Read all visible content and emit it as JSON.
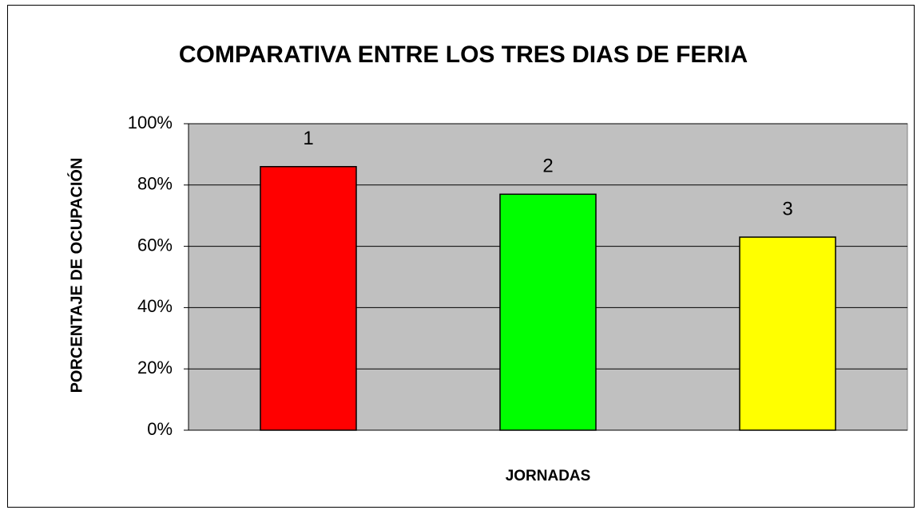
{
  "chart_data": {
    "type": "bar",
    "title": "COMPARATIVA ENTRE LOS TRES DIAS DE FERIA",
    "x_label": "JORNADAS",
    "y_label": "PORCENTAJE DE OCUPACIÓN",
    "categories": [
      "1",
      "2",
      "3"
    ],
    "values": [
      86,
      77,
      63
    ],
    "colors": [
      "#ff0000",
      "#00ff00",
      "#ffff00"
    ],
    "ylim": [
      0,
      100
    ],
    "yticks": [
      {
        "value": 0,
        "label": "0%"
      },
      {
        "value": 20,
        "label": "20%"
      },
      {
        "value": 40,
        "label": "40%"
      },
      {
        "value": 60,
        "label": "60%"
      },
      {
        "value": 80,
        "label": "80%"
      },
      {
        "value": 100,
        "label": "100%"
      }
    ],
    "grid": true,
    "plot_background": "#c0c0c0"
  }
}
